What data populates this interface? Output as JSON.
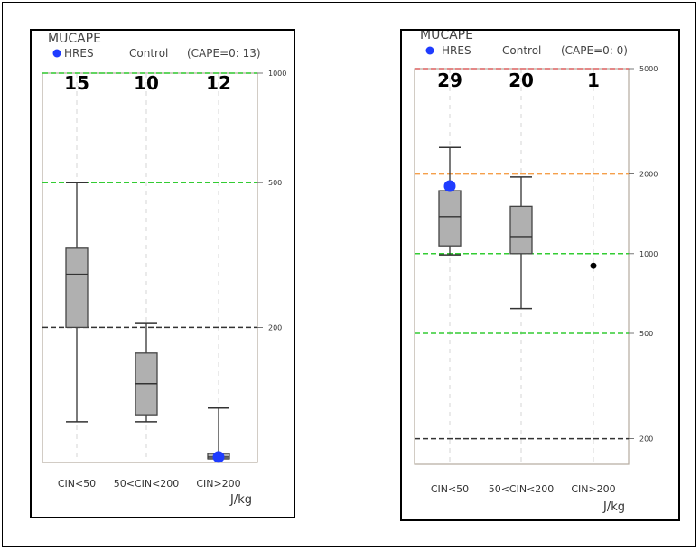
{
  "chart_data": [
    {
      "type": "box",
      "title": "MUCAPE",
      "legend": [
        {
          "label": "HRES",
          "color": "#1f3cff"
        },
        {
          "label": "Control",
          "color": ""
        },
        {
          "label": "(CAPE=0: 13)",
          "color": ""
        }
      ],
      "categories": [
        "CIN<50",
        "50<CIN<200",
        "CIN>200"
      ],
      "counts": [
        "15",
        "10",
        "12"
      ],
      "xlabel": "J/kg",
      "yscale": "log",
      "ylim": [
        85,
        1000
      ],
      "yticks": [
        {
          "value": 200,
          "label": "200"
        },
        {
          "value": 500,
          "label": "500"
        },
        {
          "value": 1000,
          "label": "1000"
        }
      ],
      "hlines": [
        {
          "value": 1000,
          "color": "#33cc33"
        },
        {
          "value": 500,
          "color": "#33cc33"
        },
        {
          "value": 200,
          "color": "#333333"
        }
      ],
      "boxes": [
        {
          "whisker_low": 110,
          "q1": 200,
          "median": 280,
          "q3": 330,
          "whisker_high": 500
        },
        {
          "whisker_low": 110,
          "q1": 115,
          "median": 140,
          "q3": 170,
          "whisker_high": 205
        },
        {
          "whisker_low": 87,
          "q1": 87,
          "median": 88,
          "q3": 90,
          "whisker_high": 120
        }
      ],
      "markers": [
        {
          "category_index": 2,
          "value": 88,
          "color": "#1f3cff",
          "size": "large"
        }
      ]
    },
    {
      "type": "box",
      "title": "MUCAPE",
      "legend": [
        {
          "label": "HRES",
          "color": "#1f3cff"
        },
        {
          "label": "Control",
          "color": ""
        },
        {
          "label": "(CAPE=0: 0)",
          "color": ""
        }
      ],
      "categories": [
        "CIN<50",
        "50<CIN<200",
        "CIN>200"
      ],
      "counts": [
        "29",
        "20",
        "1"
      ],
      "xlabel": "J/kg",
      "yscale": "log",
      "ylim": [
        160,
        5000
      ],
      "yticks": [
        {
          "value": 200,
          "label": "200"
        },
        {
          "value": 500,
          "label": "500"
        },
        {
          "value": 1000,
          "label": "1000"
        },
        {
          "value": 2000,
          "label": "2000"
        },
        {
          "value": 5000,
          "label": "5000"
        }
      ],
      "hlines": [
        {
          "value": 5000,
          "color": "#e06666"
        },
        {
          "value": 2000,
          "color": "#f59f4a"
        },
        {
          "value": 1000,
          "color": "#33cc33"
        },
        {
          "value": 500,
          "color": "#33cc33"
        },
        {
          "value": 200,
          "color": "#333333"
        }
      ],
      "boxes": [
        {
          "whisker_low": 990,
          "q1": 1070,
          "median": 1380,
          "q3": 1730,
          "whisker_high": 2520
        },
        {
          "whisker_low": 620,
          "q1": 1000,
          "median": 1160,
          "q3": 1510,
          "whisker_high": 1950
        },
        null
      ],
      "markers": [
        {
          "category_index": 0,
          "value": 1800,
          "color": "#1f3cff",
          "size": "large"
        },
        {
          "category_index": 2,
          "value": 900,
          "color": "#000000",
          "size": "small"
        }
      ]
    }
  ]
}
